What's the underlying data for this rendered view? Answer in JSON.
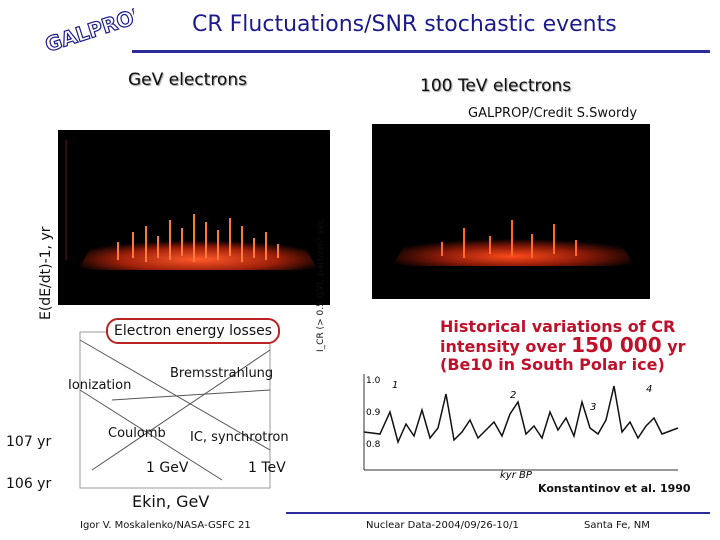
{
  "logo_text": "GALPROP",
  "title": "CR Fluctuations/SNR stochastic events",
  "headers": {
    "left": "GeV electrons",
    "right": "100 TeV electrons"
  },
  "credit": "GALPROP/Credit S.Swordy",
  "loss_plot": {
    "ylabel": "E(dE/dt)-1, yr",
    "tick_1e7": "107 yr",
    "tick_1e6": "106 yr",
    "title_box": "Electron energy losses",
    "labels": {
      "ionization": "Ionization",
      "bremss": "Bremsstrahlung",
      "coulomb": "Coulomb",
      "ic": "IC, synchrotron",
      "gev": "1 GeV",
      "tev": "1 TeV",
      "xlabel": "Ekin, GeV"
    }
  },
  "history": {
    "title_line1": "Historical variations of CR",
    "title_line2a": "intensity over ",
    "title_line2b": "150 000",
    "title_line2c": " yr",
    "title_line3": "(Be10 in South Polar ice)",
    "yaxis_label": "I_CR (> 0.5 GV), part/cm² sec",
    "xlabel": "kyr BP",
    "ticks_y": [
      "1.0",
      "0.9",
      "0.8"
    ],
    "peaks": [
      "1",
      "2",
      "3",
      "4"
    ],
    "attribution": "Konstantinov et al. 1990"
  },
  "footer": {
    "author": "Igor V. Moskalenko/NASA-GSFC 21",
    "conf": "Nuclear Data-2004/09/26-10/1",
    "place": "Santa Fe, NM"
  },
  "colors": {
    "title": "#1a1a8c",
    "rule": "#2b2b9a",
    "history_title": "#c0102a"
  }
}
